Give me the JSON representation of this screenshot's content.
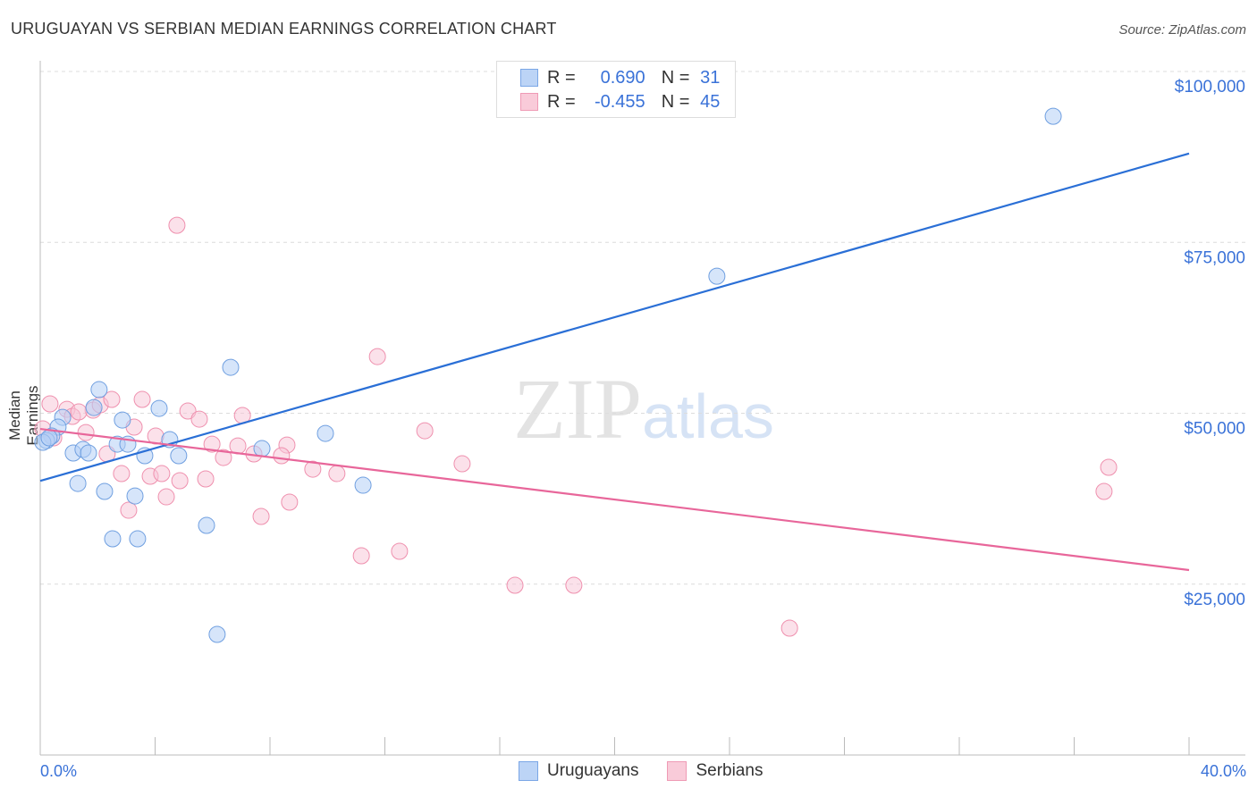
{
  "title": "URUGUAYAN VS SERBIAN MEDIAN EARNINGS CORRELATION CHART",
  "source": "Source: ZipAtlas.com",
  "watermark": "ZIPatlas",
  "legend": [
    {
      "r_label": "R =",
      "r": "0.690",
      "n_label": "N =",
      "n": "31"
    },
    {
      "r_label": "R =",
      "r": "-0.455",
      "n_label": "N =",
      "n": "45"
    }
  ],
  "colors": {
    "uruguayans": "#6f9fe0",
    "serbians": "#ef90ae",
    "uru_line": "#2a6fd6",
    "ser_line": "#e8669a"
  },
  "chart_data": {
    "type": "scatter",
    "title": "URUGUAYAN VS SERBIAN MEDIAN EARNINGS CORRELATION CHART",
    "xlabel": "",
    "ylabel": "Median Earnings",
    "xlim": [
      0,
      40
    ],
    "ylim": [
      0,
      100000
    ],
    "x_tick_labels": [
      "0.0%",
      "40.0%"
    ],
    "y_ticks": [
      25000,
      50000,
      75000,
      100000
    ],
    "y_tick_labels": [
      "$25,000",
      "$50,000",
      "$75,000",
      "$100,000"
    ],
    "grid": true,
    "legend_position": "top-center",
    "series": [
      {
        "name": "Uruguayans",
        "trend": [
          [
            0,
            40100
          ],
          [
            40,
            88000
          ]
        ],
        "points": [
          [
            35.27,
            93450
          ],
          [
            23.56,
            70050
          ],
          [
            6.63,
            56720
          ],
          [
            2.05,
            53460
          ],
          [
            2.86,
            49010
          ],
          [
            4.14,
            50710
          ],
          [
            1.87,
            50840
          ],
          [
            0.78,
            49400
          ],
          [
            0.62,
            47970
          ],
          [
            0.4,
            46660
          ],
          [
            0.22,
            46010
          ],
          [
            0.09,
            45750
          ],
          [
            1.15,
            44180
          ],
          [
            1.49,
            44700
          ],
          [
            1.68,
            44180
          ],
          [
            2.68,
            45480
          ],
          [
            3.05,
            45480
          ],
          [
            3.64,
            43790
          ],
          [
            4.51,
            46140
          ],
          [
            4.82,
            43790
          ],
          [
            7.72,
            44830
          ],
          [
            9.93,
            47050
          ],
          [
            11.24,
            39470
          ],
          [
            1.31,
            39730
          ],
          [
            2.24,
            38560
          ],
          [
            3.3,
            37900
          ],
          [
            5.79,
            33590
          ],
          [
            2.52,
            31630
          ],
          [
            3.39,
            31630
          ],
          [
            6.16,
            17650
          ],
          [
            0.31,
            46400
          ]
        ]
      },
      {
        "name": "Serbians",
        "trend": [
          [
            0,
            47700
          ],
          [
            40,
            27060
          ]
        ],
        "points": [
          [
            4.76,
            77500
          ],
          [
            11.74,
            58290
          ],
          [
            0.34,
            51370
          ],
          [
            0.93,
            50580
          ],
          [
            1.84,
            50450
          ],
          [
            2.09,
            51230
          ],
          [
            2.49,
            52020
          ],
          [
            3.55,
            52020
          ],
          [
            1.12,
            49540
          ],
          [
            1.34,
            50190
          ],
          [
            5.14,
            50320
          ],
          [
            5.54,
            49140
          ],
          [
            7.04,
            49670
          ],
          [
            3.27,
            47970
          ],
          [
            1.59,
            47180
          ],
          [
            4.02,
            46660
          ],
          [
            5.98,
            45480
          ],
          [
            6.88,
            45220
          ],
          [
            8.59,
            45350
          ],
          [
            13.39,
            47440
          ],
          [
            2.33,
            44050
          ],
          [
            6.38,
            43520
          ],
          [
            7.44,
            44050
          ],
          [
            8.4,
            43790
          ],
          [
            9.49,
            41820
          ],
          [
            10.33,
            41170
          ],
          [
            14.69,
            42610
          ],
          [
            2.83,
            41170
          ],
          [
            3.83,
            40780
          ],
          [
            4.23,
            41170
          ],
          [
            4.86,
            40130
          ],
          [
            5.76,
            40390
          ],
          [
            4.39,
            37770
          ],
          [
            3.08,
            35810
          ],
          [
            8.68,
            36990
          ],
          [
            7.69,
            34900
          ],
          [
            11.18,
            29150
          ],
          [
            12.51,
            29800
          ],
          [
            16.53,
            24830
          ],
          [
            18.58,
            24830
          ],
          [
            26.09,
            18560
          ],
          [
            37.2,
            42090
          ],
          [
            37.04,
            38560
          ],
          [
            0.09,
            47710
          ],
          [
            0.47,
            46400
          ]
        ]
      }
    ]
  },
  "bottom_legend": [
    "Uruguayans",
    "Serbians"
  ]
}
